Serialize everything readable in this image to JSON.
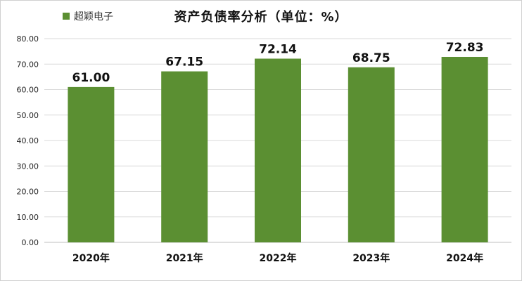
{
  "chart_data": {
    "type": "bar",
    "title": "资产负债率分析（单位：%）",
    "categories": [
      "2020年",
      "2021年",
      "2022年",
      "2023年",
      "2024年"
    ],
    "series": [
      {
        "name": "超颖电子",
        "values": [
          61.0,
          67.15,
          72.14,
          68.75,
          72.83
        ],
        "value_labels": [
          "61.00",
          "67.15",
          "72.14",
          "68.75",
          "72.83"
        ],
        "color": "#5b8f32"
      }
    ],
    "yticks": [
      "0.00",
      "10.00",
      "20.00",
      "30.00",
      "40.00",
      "50.00",
      "60.00",
      "70.00",
      "80.00"
    ],
    "ylim": [
      0,
      80
    ],
    "grid": true,
    "legend": "top-left"
  }
}
